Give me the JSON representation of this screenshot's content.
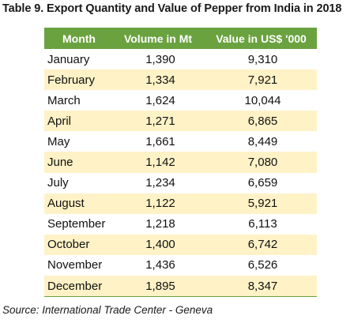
{
  "caption": "Table 9. Export Quantity and Value of Pepper from India in 2018",
  "table": {
    "headers": [
      "Month",
      "Volume in Mt",
      "Value in US$ '000"
    ],
    "rows": [
      [
        "January",
        "1,390",
        "9,310"
      ],
      [
        "February",
        "1,334",
        "7,921"
      ],
      [
        "March",
        "1,624",
        "10,044"
      ],
      [
        "April",
        "1,271",
        "6,865"
      ],
      [
        "May",
        "1,661",
        "8,449"
      ],
      [
        "June",
        "1,142",
        "7,080"
      ],
      [
        "July",
        "1,234",
        "6,659"
      ],
      [
        "August",
        "1,122",
        "5,921"
      ],
      [
        "September",
        "1,218",
        "6,113"
      ],
      [
        "October",
        "1,400",
        "6,742"
      ],
      [
        "November",
        "1,436",
        "6,526"
      ],
      [
        "December",
        "1,895",
        "8,347"
      ]
    ]
  },
  "source": "Source: International Trade Center - Geneva",
  "colors": {
    "header_bg": "#6aa23f",
    "band_bg": "#fef2c6"
  }
}
